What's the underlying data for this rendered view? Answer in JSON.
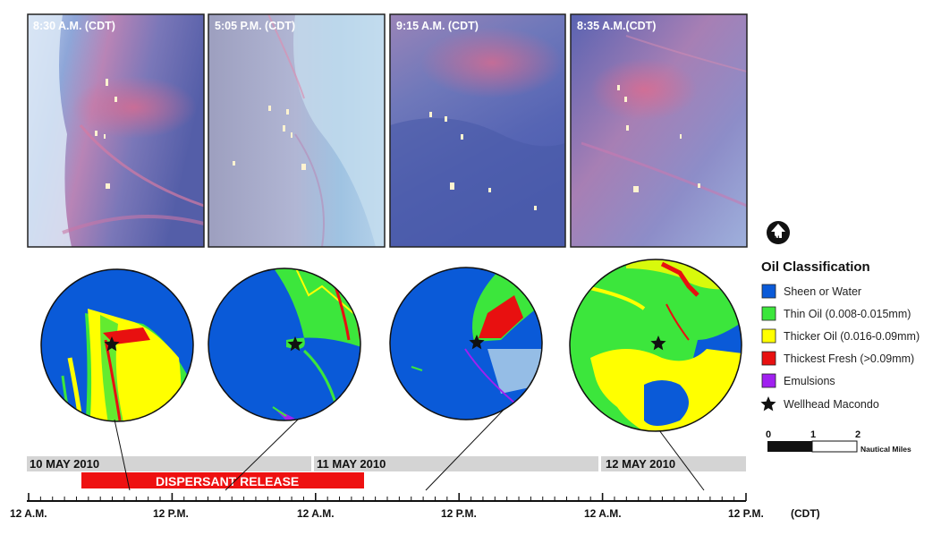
{
  "photos": [
    {
      "label": "8:30 A.M. (CDT)"
    },
    {
      "label": "5:05 P.M. (CDT)"
    },
    {
      "label": "9:15 A.M. (CDT)"
    },
    {
      "label": "8:35 A.M.(CDT)"
    }
  ],
  "north_icon": "north-arrow-icon",
  "legend": {
    "title": "Oil Classification",
    "items": [
      {
        "label": "Sheen or Water",
        "color": "#0a5ad8"
      },
      {
        "label": "Thin Oil (0.008-0.015mm)",
        "color": "#3ce63c"
      },
      {
        "label": "Thicker Oil (0.016-0.09mm)",
        "color": "#ffff00"
      },
      {
        "label": "Thickest Fresh (>0.09mm)",
        "color": "#e81010"
      },
      {
        "label": "Emulsions",
        "color": "#a020f0"
      }
    ],
    "wellhead": {
      "label": "Wellhead Macondo",
      "icon": "star-icon"
    }
  },
  "scale_bar": {
    "labels": [
      "0",
      "1",
      "2"
    ],
    "unit": "Nautical Miles"
  },
  "timeline": {
    "days": [
      "10 MAY 2010",
      "11 MAY 2010",
      "12 MAY 2010"
    ],
    "dispersant_label": "DISPERSANT RELEASE",
    "dispersant_color": "#ee1111",
    "tick_labels": [
      "12 A.M.",
      "12 P.M.",
      "12 A.M.",
      "12 P.M.",
      "12 A.M.",
      "12 P.M."
    ],
    "timezone": "(CDT)"
  }
}
